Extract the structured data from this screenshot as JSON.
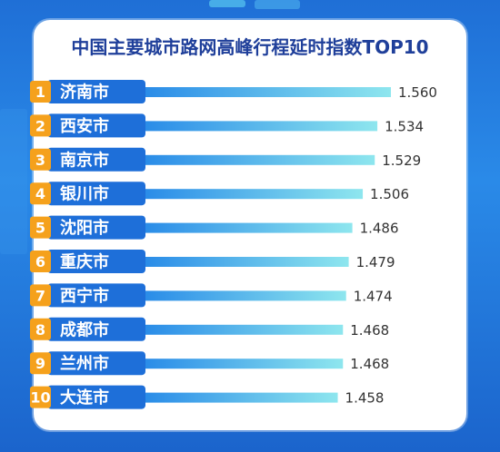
{
  "chart_data": {
    "type": "bar",
    "title": "中国主要城市路网高峰行程延时指数TOP10",
    "ranks": [
      "1",
      "2",
      "3",
      "4",
      "5",
      "6",
      "7",
      "8",
      "9",
      "10"
    ],
    "categories": [
      "济南市",
      "西安市",
      "南京市",
      "银川市",
      "沈阳市",
      "重庆市",
      "西宁市",
      "成都市",
      "兰州市",
      "大连市"
    ],
    "values": [
      1.56,
      1.534,
      1.529,
      1.506,
      1.486,
      1.479,
      1.474,
      1.468,
      1.468,
      1.458
    ],
    "value_labels": [
      "1.560",
      "1.534",
      "1.529",
      "1.506",
      "1.486",
      "1.479",
      "1.474",
      "1.468",
      "1.468",
      "1.458"
    ],
    "orientation": "horizontal",
    "grid": false,
    "xlabel": "",
    "ylabel": ""
  },
  "colors": {
    "badge": "#f5a11c",
    "label_bg": "#1e6fd9",
    "bar_start": "#2a8ce8",
    "bar_end": "#8ee6ee",
    "title": "#1f3f9a",
    "value": "#333333"
  }
}
